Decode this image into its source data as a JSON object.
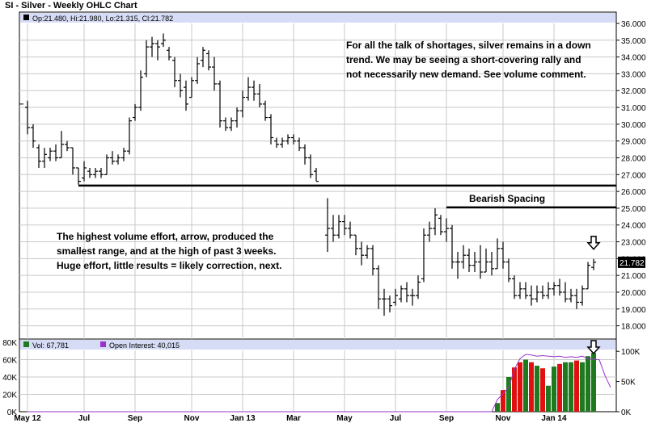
{
  "title": "SI - Silver - Weekly OHLC Chart",
  "chart_data": {
    "type": "ohlc",
    "title": "SI - Silver - Weekly OHLC Chart",
    "price_panel": {
      "legend": "Op:21.480, Hi:21.980, Lo:21.315, Cl:21.782",
      "last_close_label": "21.782",
      "ylim": [
        17.5,
        36.0
      ],
      "y_ticks": [
        "18.000",
        "19.000",
        "20.000",
        "21.000",
        "22.000",
        "23.000",
        "24.000",
        "25.000",
        "26.000",
        "27.000",
        "28.000",
        "29.000",
        "30.000",
        "31.000",
        "32.000",
        "33.000",
        "34.000",
        "35.000",
        "36.000"
      ],
      "bars": [
        {
          "h": 31.4,
          "l": 29.4,
          "o": 31.0,
          "c": 29.8
        },
        {
          "h": 30.0,
          "l": 28.6,
          "o": 29.8,
          "c": 29.0
        },
        {
          "h": 28.8,
          "l": 27.4,
          "o": 28.6,
          "c": 27.8
        },
        {
          "h": 28.6,
          "l": 27.4,
          "o": 27.8,
          "c": 28.2
        },
        {
          "h": 28.6,
          "l": 27.8,
          "o": 28.0,
          "c": 28.4
        },
        {
          "h": 28.8,
          "l": 27.8,
          "o": 28.4,
          "c": 28.0
        },
        {
          "h": 29.6,
          "l": 28.0,
          "o": 28.0,
          "c": 28.8
        },
        {
          "h": 29.0,
          "l": 28.4,
          "o": 28.8,
          "c": 28.6
        },
        {
          "h": 28.6,
          "l": 27.0,
          "o": 28.6,
          "c": 27.4
        },
        {
          "h": 27.4,
          "l": 26.4,
          "o": 27.4,
          "c": 26.6
        },
        {
          "h": 27.8,
          "l": 26.6,
          "o": 26.8,
          "c": 27.4
        },
        {
          "h": 27.4,
          "l": 26.8,
          "o": 27.2,
          "c": 27.0
        },
        {
          "h": 27.4,
          "l": 26.8,
          "o": 27.0,
          "c": 27.2
        },
        {
          "h": 27.4,
          "l": 26.8,
          "o": 27.2,
          "c": 27.0
        },
        {
          "h": 28.2,
          "l": 27.0,
          "o": 27.0,
          "c": 28.0
        },
        {
          "h": 28.4,
          "l": 27.6,
          "o": 28.0,
          "c": 27.8
        },
        {
          "h": 28.2,
          "l": 27.6,
          "o": 27.8,
          "c": 28.0
        },
        {
          "h": 28.6,
          "l": 27.8,
          "o": 28.0,
          "c": 28.4
        },
        {
          "h": 30.4,
          "l": 28.2,
          "o": 28.4,
          "c": 30.2
        },
        {
          "h": 31.2,
          "l": 30.2,
          "o": 30.4,
          "c": 31.0
        },
        {
          "h": 33.2,
          "l": 30.8,
          "o": 31.0,
          "c": 32.8
        },
        {
          "h": 35.0,
          "l": 32.8,
          "o": 33.0,
          "c": 34.6
        },
        {
          "h": 35.2,
          "l": 34.0,
          "o": 34.6,
          "c": 34.8
        },
        {
          "h": 35.0,
          "l": 33.8,
          "o": 34.8,
          "c": 34.6
        },
        {
          "h": 35.4,
          "l": 34.6,
          "o": 34.8,
          "c": 35.0
        },
        {
          "h": 34.6,
          "l": 33.8,
          "o": 34.4,
          "c": 34.0
        },
        {
          "h": 34.0,
          "l": 32.2,
          "o": 33.8,
          "c": 32.6
        },
        {
          "h": 33.0,
          "l": 31.6,
          "o": 32.6,
          "c": 32.0
        },
        {
          "h": 32.6,
          "l": 30.8,
          "o": 32.2,
          "c": 31.2
        },
        {
          "h": 32.8,
          "l": 31.6,
          "o": 31.6,
          "c": 32.6
        },
        {
          "h": 34.0,
          "l": 32.4,
          "o": 32.6,
          "c": 33.6
        },
        {
          "h": 34.6,
          "l": 33.4,
          "o": 33.8,
          "c": 34.4
        },
        {
          "h": 34.4,
          "l": 33.2,
          "o": 34.2,
          "c": 33.4
        },
        {
          "h": 34.0,
          "l": 32.0,
          "o": 33.4,
          "c": 32.4
        },
        {
          "h": 32.6,
          "l": 29.8,
          "o": 32.4,
          "c": 30.2
        },
        {
          "h": 30.4,
          "l": 29.6,
          "o": 30.2,
          "c": 29.8
        },
        {
          "h": 30.4,
          "l": 29.6,
          "o": 29.8,
          "c": 30.2
        },
        {
          "h": 31.0,
          "l": 29.8,
          "o": 30.2,
          "c": 30.8
        },
        {
          "h": 32.0,
          "l": 30.4,
          "o": 30.8,
          "c": 31.6
        },
        {
          "h": 32.8,
          "l": 31.4,
          "o": 31.6,
          "c": 32.2
        },
        {
          "h": 32.6,
          "l": 31.4,
          "o": 32.2,
          "c": 31.8
        },
        {
          "h": 32.4,
          "l": 31.0,
          "o": 31.8,
          "c": 31.2
        },
        {
          "h": 31.4,
          "l": 30.2,
          "o": 31.2,
          "c": 30.4
        },
        {
          "h": 30.6,
          "l": 28.8,
          "o": 30.4,
          "c": 29.2
        },
        {
          "h": 29.2,
          "l": 28.6,
          "o": 29.0,
          "c": 28.8
        },
        {
          "h": 29.2,
          "l": 28.6,
          "o": 28.8,
          "c": 29.0
        },
        {
          "h": 29.4,
          "l": 28.8,
          "o": 29.0,
          "c": 29.2
        },
        {
          "h": 29.4,
          "l": 28.8,
          "o": 29.2,
          "c": 29.0
        },
        {
          "h": 29.2,
          "l": 28.4,
          "o": 29.0,
          "c": 28.6
        },
        {
          "h": 28.8,
          "l": 27.6,
          "o": 28.6,
          "c": 28.0
        },
        {
          "h": 28.2,
          "l": 26.8,
          "o": 28.0,
          "c": 27.0
        },
        {
          "h": 27.4,
          "l": 26.6,
          "o": 27.2,
          "c": 26.6
        },
        null,
        {
          "h": 25.6,
          "l": 22.4,
          "o": 23.4,
          "c": 23.8
        },
        {
          "h": 24.6,
          "l": 23.0,
          "o": 23.8,
          "c": 23.4
        },
        {
          "h": 24.6,
          "l": 23.2,
          "o": 23.4,
          "c": 24.2
        },
        {
          "h": 24.6,
          "l": 23.4,
          "o": 24.2,
          "c": 23.8
        },
        {
          "h": 24.2,
          "l": 23.2,
          "o": 23.8,
          "c": 23.4
        },
        {
          "h": 23.4,
          "l": 22.2,
          "o": 23.4,
          "c": 22.6
        },
        {
          "h": 23.0,
          "l": 21.6,
          "o": 22.6,
          "c": 22.2
        },
        {
          "h": 22.8,
          "l": 22.0,
          "o": 22.2,
          "c": 22.6
        },
        {
          "h": 22.8,
          "l": 21.0,
          "o": 22.6,
          "c": 21.4
        },
        {
          "h": 21.6,
          "l": 19.0,
          "o": 21.4,
          "c": 19.6
        },
        {
          "h": 20.2,
          "l": 18.6,
          "o": 19.6,
          "c": 19.6
        },
        {
          "h": 19.8,
          "l": 18.8,
          "o": 19.6,
          "c": 19.2
        },
        {
          "h": 20.2,
          "l": 19.2,
          "o": 19.4,
          "c": 19.8
        },
        {
          "h": 20.4,
          "l": 19.4,
          "o": 19.6,
          "c": 20.2
        },
        {
          "h": 20.6,
          "l": 19.4,
          "o": 20.2,
          "c": 19.8
        },
        {
          "h": 20.2,
          "l": 19.2,
          "o": 19.8,
          "c": 19.8
        },
        {
          "h": 21.0,
          "l": 19.6,
          "o": 19.8,
          "c": 20.6
        },
        {
          "h": 23.8,
          "l": 20.6,
          "o": 20.8,
          "c": 23.4
        },
        {
          "h": 24.2,
          "l": 23.0,
          "o": 23.4,
          "c": 23.8
        },
        {
          "h": 25.0,
          "l": 23.4,
          "o": 23.8,
          "c": 24.6
        },
        {
          "h": 24.6,
          "l": 23.4,
          "o": 24.4,
          "c": 23.6
        },
        {
          "h": 24.4,
          "l": 23.0,
          "o": 23.6,
          "c": 23.8
        },
        {
          "h": 24.0,
          "l": 21.4,
          "o": 23.8,
          "c": 21.8
        },
        {
          "h": 22.4,
          "l": 20.8,
          "o": 21.8,
          "c": 21.8
        },
        {
          "h": 22.8,
          "l": 21.4,
          "o": 21.8,
          "c": 22.2
        },
        {
          "h": 22.6,
          "l": 21.2,
          "o": 22.2,
          "c": 21.6
        },
        {
          "h": 22.4,
          "l": 21.2,
          "o": 21.6,
          "c": 21.8
        },
        {
          "h": 22.8,
          "l": 20.8,
          "o": 21.8,
          "c": 21.2
        },
        {
          "h": 22.6,
          "l": 21.2,
          "o": 21.2,
          "c": 21.8
        },
        {
          "h": 22.4,
          "l": 21.0,
          "o": 21.8,
          "c": 21.4
        },
        {
          "h": 23.2,
          "l": 21.4,
          "o": 21.4,
          "c": 22.6
        },
        {
          "h": 23.0,
          "l": 21.4,
          "o": 22.6,
          "c": 21.8
        },
        {
          "h": 22.0,
          "l": 20.6,
          "o": 21.8,
          "c": 20.8
        },
        {
          "h": 21.0,
          "l": 19.6,
          "o": 20.8,
          "c": 19.8
        },
        {
          "h": 20.6,
          "l": 19.6,
          "o": 19.8,
          "c": 20.2
        },
        {
          "h": 20.6,
          "l": 19.6,
          "o": 20.2,
          "c": 19.8
        },
        {
          "h": 20.4,
          "l": 19.2,
          "o": 19.8,
          "c": 19.6
        },
        {
          "h": 20.4,
          "l": 19.4,
          "o": 19.6,
          "c": 20.0
        },
        {
          "h": 20.4,
          "l": 19.6,
          "o": 20.0,
          "c": 19.8
        },
        {
          "h": 20.6,
          "l": 19.6,
          "o": 19.8,
          "c": 20.2
        },
        {
          "h": 20.6,
          "l": 19.8,
          "o": 20.2,
          "c": 20.4
        },
        {
          "h": 20.8,
          "l": 19.8,
          "o": 20.4,
          "c": 20.0
        },
        {
          "h": 20.6,
          "l": 19.4,
          "o": 20.0,
          "c": 19.6
        },
        {
          "h": 20.2,
          "l": 19.4,
          "o": 19.6,
          "c": 19.8
        },
        {
          "h": 20.2,
          "l": 19.0,
          "o": 19.8,
          "c": 19.4
        },
        {
          "h": 20.4,
          "l": 19.2,
          "o": 19.4,
          "c": 20.2
        },
        {
          "h": 21.8,
          "l": 20.2,
          "o": 20.2,
          "c": 21.6
        },
        {
          "h": 21.98,
          "l": 21.315,
          "o": 21.48,
          "c": 21.782
        }
      ],
      "support_line": 26.35,
      "bearish_spacing_line": 25.05
    },
    "volume_panel": {
      "legend_vol": "Vol: 67,781",
      "legend_oi": "Open Interest: 40,015",
      "left_ticks": [
        "0K",
        "20K",
        "40K",
        "60K",
        "80K"
      ],
      "right_ticks": [
        "0K",
        "50K",
        "100K"
      ],
      "vol_max": 80000,
      "oi_max": 115000,
      "volume": [
        0,
        0,
        0,
        0,
        0,
        0,
        0,
        0,
        0,
        0,
        0,
        0,
        0,
        0,
        0,
        0,
        0,
        0,
        0,
        0,
        0,
        0,
        0,
        0,
        0,
        0,
        0,
        0,
        0,
        0,
        0,
        0,
        0,
        0,
        0,
        0,
        0,
        0,
        0,
        0,
        0,
        0,
        0,
        0,
        0,
        0,
        0,
        0,
        0,
        0,
        0,
        0,
        0,
        0,
        0,
        0,
        0,
        0,
        0,
        0,
        0,
        0,
        0,
        0,
        0,
        0,
        0,
        0,
        0,
        0,
        0,
        0,
        0,
        0,
        0,
        0,
        0,
        0,
        0,
        0,
        0,
        0,
        0,
        10000,
        25000,
        40000,
        51000,
        57000,
        60000,
        57000,
        53000,
        50000,
        30000,
        52000,
        55000,
        57000,
        57000,
        59000,
        57000,
        64000,
        67781
      ],
      "volume_colors": [
        "green",
        "green",
        "green",
        "green",
        "green",
        "green",
        "green",
        "green",
        "green",
        "green",
        "green",
        "green",
        "green",
        "green",
        "green",
        "green",
        "green",
        "green",
        "green",
        "green",
        "green",
        "green",
        "green",
        "green",
        "green",
        "green",
        "green",
        "green",
        "green",
        "green",
        "green",
        "green",
        "green",
        "green",
        "green",
        "green",
        "green",
        "green",
        "green",
        "green",
        "green",
        "green",
        "green",
        "green",
        "green",
        "green",
        "green",
        "green",
        "green",
        "green",
        "green",
        "green",
        "green",
        "green",
        "green",
        "green",
        "green",
        "green",
        "green",
        "green",
        "green",
        "green",
        "green",
        "green",
        "green",
        "green",
        "green",
        "green",
        "green",
        "green",
        "green",
        "green",
        "green",
        "green",
        "green",
        "green",
        "green",
        "green",
        "green",
        "green",
        "green",
        "green",
        "green",
        "green",
        "red",
        "green",
        "red",
        "red",
        "green",
        "red",
        "green",
        "red",
        "green",
        "green",
        "red",
        "green",
        "green",
        "red",
        "green",
        "green",
        "green",
        "green"
      ],
      "open_interest": [
        0,
        0,
        0,
        0,
        0,
        0,
        0,
        0,
        0,
        0,
        0,
        0,
        0,
        0,
        0,
        0,
        0,
        0,
        0,
        0,
        0,
        0,
        0,
        0,
        0,
        0,
        0,
        0,
        0,
        0,
        0,
        0,
        0,
        0,
        0,
        0,
        0,
        0,
        0,
        0,
        0,
        0,
        0,
        0,
        0,
        0,
        0,
        0,
        0,
        0,
        0,
        0,
        0,
        0,
        0,
        0,
        0,
        0,
        0,
        0,
        0,
        0,
        0,
        0,
        0,
        0,
        0,
        0,
        0,
        0,
        0,
        0,
        0,
        0,
        0,
        0,
        0,
        0,
        0,
        0,
        0,
        0,
        0,
        20000,
        30000,
        40000,
        70000,
        88000,
        95000,
        94000,
        92000,
        93000,
        92000,
        91000,
        92000,
        90000,
        91000,
        90000,
        92000,
        88000,
        87000,
        86000,
        60000,
        40015
      ]
    },
    "x_axis_labels": [
      "May 12",
      "Jul",
      "Sep",
      "Nov",
      "Jan 13",
      "Mar",
      "May",
      "Jul",
      "Sep",
      "Nov",
      "Jan 14"
    ],
    "x_axis_label_bars": [
      0,
      10,
      19,
      29,
      38,
      47,
      56,
      65,
      74,
      84,
      93
    ]
  },
  "annotations": {
    "top_note": [
      "For all the talk of shortages, silver remains in a down",
      "trend.  We may be seeing a short-covering rally and",
      "not necessarily new demand.  See volume comment."
    ],
    "left_note": [
      "The highest volume effort, arrow, produced the",
      "smallest range, and at the high of past 3 weeks.",
      "Huge effort, little results = likely correction, next."
    ],
    "bearish_spacing": "Bearish Spacing"
  },
  "colors": {
    "frame": "#000000",
    "grid": "#c8c8c8",
    "legend_band": "#d6dcf5",
    "bar": "#000000",
    "vol_green": "#1f7a1f",
    "vol_red": "#e01010",
    "open_interest_line": "#9933cc",
    "last_label_bg": "#000000"
  }
}
